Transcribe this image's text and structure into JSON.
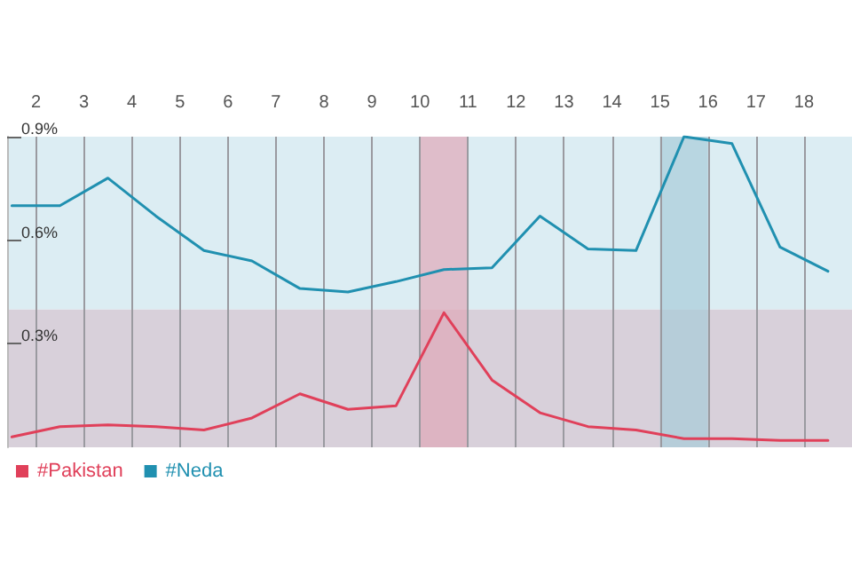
{
  "chart_data": {
    "type": "line",
    "x": [
      1.5,
      2.5,
      3.5,
      4.5,
      5.5,
      6.5,
      7.5,
      8.5,
      9.5,
      10.5,
      11.5,
      12.5,
      13.5,
      14.5,
      15.5,
      16.5,
      17.5,
      18.5
    ],
    "series": [
      {
        "name": "#Pakistan",
        "color": "#e0405a",
        "values": [
          0.03,
          0.06,
          0.065,
          0.06,
          0.05,
          0.085,
          0.155,
          0.11,
          0.12,
          0.39,
          0.195,
          0.1,
          0.06,
          0.05,
          0.025,
          0.025,
          0.02,
          0.02
        ]
      },
      {
        "name": "#Neda",
        "color": "#2090b0",
        "values": [
          0.7,
          0.7,
          0.78,
          0.67,
          0.57,
          0.54,
          0.46,
          0.45,
          0.48,
          0.515,
          0.52,
          0.67,
          0.575,
          0.57,
          0.9,
          0.88,
          0.58,
          0.51
        ]
      }
    ],
    "xlim": [
      1.4,
      19.0
    ],
    "xticks": [
      2,
      3,
      4,
      5,
      6,
      7,
      8,
      9,
      10,
      11,
      12,
      13,
      14,
      15,
      16,
      17,
      18
    ],
    "ylim": [
      0,
      0.9
    ],
    "yticks": [
      {
        "value": 0.3,
        "label": "0.3%"
      },
      {
        "value": 0.6,
        "label": "0.6%"
      },
      {
        "value": 0.9,
        "label": "0.9%"
      }
    ],
    "bands": [
      {
        "axis": "y",
        "from": 0,
        "to": 0.4,
        "color": "#d8d0da"
      },
      {
        "axis": "y",
        "from": 0.4,
        "to": 0.9,
        "color": "#dcedf3"
      },
      {
        "axis": "x",
        "from": 10,
        "to": 11,
        "color": "#e0a8b8"
      },
      {
        "axis": "x",
        "from": 15,
        "to": 16,
        "color": "#a8ccd8"
      }
    ],
    "grid": "x",
    "legend": "bottom left",
    "marker": "none",
    "line_style": "solid"
  }
}
